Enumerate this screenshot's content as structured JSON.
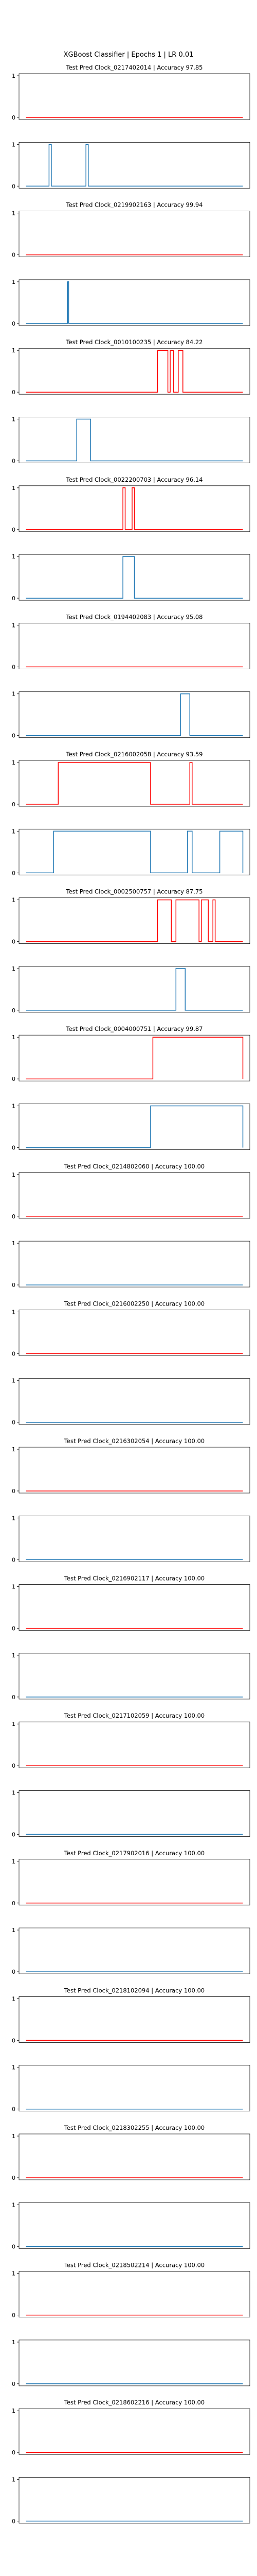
{
  "figure": {
    "suptitle": "XGBoost Classifier | Epochs 1 | LR 0.01"
  },
  "colors": {
    "pred": "#ff0000",
    "true": "#1f77b4",
    "axes": "#000000"
  },
  "chart_data": [
    {
      "type": "line",
      "title": "Test Pred Clock_0217402014 | Accuracy 97.85",
      "kind": "pred",
      "ylim": [
        0,
        1
      ],
      "yticks": [
        0,
        1
      ],
      "intervals": []
    },
    {
      "type": "line",
      "title": "",
      "kind": "true",
      "ylim": [
        0,
        1
      ],
      "yticks": [
        0,
        1
      ],
      "intervals": [
        [
          0.13,
          0.14
        ],
        [
          0.29,
          0.3
        ]
      ]
    },
    {
      "type": "line",
      "title": "Test Pred Clock_0219902163 | Accuracy 99.94",
      "kind": "pred",
      "ylim": [
        0,
        1
      ],
      "yticks": [
        0,
        1
      ],
      "intervals": []
    },
    {
      "type": "line",
      "title": "",
      "kind": "true",
      "ylim": [
        0,
        1
      ],
      "yticks": [
        0,
        1
      ],
      "intervals": [
        [
          0.21,
          0.215
        ]
      ]
    },
    {
      "type": "line",
      "title": "Test Pred Clock_0010100235 | Accuracy 84.22",
      "kind": "pred",
      "ylim": [
        0,
        1
      ],
      "yticks": [
        0,
        1
      ],
      "intervals": [
        [
          0.6,
          0.645
        ],
        [
          0.655,
          0.67
        ],
        [
          0.69,
          0.71
        ]
      ]
    },
    {
      "type": "line",
      "title": "",
      "kind": "true",
      "ylim": [
        0,
        1
      ],
      "yticks": [
        0,
        1
      ],
      "intervals": [
        [
          0.25,
          0.31
        ]
      ]
    },
    {
      "type": "line",
      "title": "Test Pred Clock_0022200703 | Accuracy 96.14",
      "kind": "pred",
      "ylim": [
        0,
        1
      ],
      "yticks": [
        0,
        1
      ],
      "intervals": [
        [
          0.45,
          0.46
        ],
        [
          0.49,
          0.5
        ]
      ]
    },
    {
      "type": "line",
      "title": "",
      "kind": "true",
      "ylim": [
        0,
        1
      ],
      "yticks": [
        0,
        1
      ],
      "intervals": [
        [
          0.45,
          0.5
        ]
      ]
    },
    {
      "type": "line",
      "title": "Test Pred Clock_0194402083 | Accuracy 95.08",
      "kind": "pred",
      "ylim": [
        0,
        1
      ],
      "yticks": [
        0,
        1
      ],
      "intervals": []
    },
    {
      "type": "line",
      "title": "",
      "kind": "true",
      "ylim": [
        0,
        1
      ],
      "yticks": [
        0,
        1
      ],
      "intervals": [
        [
          0.7,
          0.74
        ]
      ]
    },
    {
      "type": "line",
      "title": "Test Pred Clock_0216002058 | Accuracy 93.59",
      "kind": "pred",
      "ylim": [
        0,
        1
      ],
      "yticks": [
        0,
        1
      ],
      "intervals": [
        [
          0.17,
          0.57
        ],
        [
          0.74,
          0.75
        ]
      ]
    },
    {
      "type": "line",
      "title": "",
      "kind": "true",
      "ylim": [
        0,
        1
      ],
      "yticks": [
        0,
        1
      ],
      "intervals": [
        [
          0.15,
          0.57
        ],
        [
          0.73,
          0.75
        ],
        [
          0.87,
          0.99
        ]
      ]
    },
    {
      "type": "line",
      "title": "Test Pred Clock_0002500757 | Accuracy 87.75",
      "kind": "pred",
      "ylim": [
        0,
        1
      ],
      "yticks": [
        0,
        1
      ],
      "intervals": [
        [
          0.6,
          0.66
        ],
        [
          0.68,
          0.78
        ],
        [
          0.79,
          0.82
        ],
        [
          0.84,
          0.85
        ]
      ]
    },
    {
      "type": "line",
      "title": "",
      "kind": "true",
      "ylim": [
        0,
        1
      ],
      "yticks": [
        0,
        1
      ],
      "intervals": [
        [
          0.68,
          0.72
        ]
      ]
    },
    {
      "type": "line",
      "title": "Test Pred Clock_0004000751 | Accuracy 99.87",
      "kind": "pred",
      "ylim": [
        0,
        1
      ],
      "yticks": [
        0,
        1
      ],
      "intervals": [
        [
          0.58,
          1.0
        ]
      ]
    },
    {
      "type": "line",
      "title": "",
      "kind": "true",
      "ylim": [
        0,
        1
      ],
      "yticks": [
        0,
        1
      ],
      "intervals": [
        [
          0.57,
          1.0
        ]
      ]
    },
    {
      "type": "line",
      "title": "Test Pred Clock_0214802060 | Accuracy 100.00",
      "kind": "pred",
      "ylim": [
        0,
        1
      ],
      "yticks": [
        0,
        1
      ],
      "intervals": []
    },
    {
      "type": "line",
      "title": "",
      "kind": "true",
      "ylim": [
        0,
        1
      ],
      "yticks": [
        0,
        1
      ],
      "intervals": []
    },
    {
      "type": "line",
      "title": "Test Pred Clock_0216002250 | Accuracy 100.00",
      "kind": "pred",
      "ylim": [
        0,
        1
      ],
      "yticks": [
        0,
        1
      ],
      "intervals": []
    },
    {
      "type": "line",
      "title": "",
      "kind": "true",
      "ylim": [
        0,
        1
      ],
      "yticks": [
        0,
        1
      ],
      "intervals": []
    },
    {
      "type": "line",
      "title": "Test Pred Clock_0216302054 | Accuracy 100.00",
      "kind": "pred",
      "ylim": [
        0,
        1
      ],
      "yticks": [
        0,
        1
      ],
      "intervals": []
    },
    {
      "type": "line",
      "title": "",
      "kind": "true",
      "ylim": [
        0,
        1
      ],
      "yticks": [
        0,
        1
      ],
      "intervals": []
    },
    {
      "type": "line",
      "title": "Test Pred Clock_0216902117 | Accuracy 100.00",
      "kind": "pred",
      "ylim": [
        0,
        1
      ],
      "yticks": [
        0,
        1
      ],
      "intervals": []
    },
    {
      "type": "line",
      "title": "",
      "kind": "true",
      "ylim": [
        0,
        1
      ],
      "yticks": [
        0,
        1
      ],
      "intervals": []
    },
    {
      "type": "line",
      "title": "Test Pred Clock_0217102059 | Accuracy 100.00",
      "kind": "pred",
      "ylim": [
        0,
        1
      ],
      "yticks": [
        0,
        1
      ],
      "intervals": []
    },
    {
      "type": "line",
      "title": "",
      "kind": "true",
      "ylim": [
        0,
        1
      ],
      "yticks": [
        0,
        1
      ],
      "intervals": []
    },
    {
      "type": "line",
      "title": "Test Pred Clock_0217902016 | Accuracy 100.00",
      "kind": "pred",
      "ylim": [
        0,
        1
      ],
      "yticks": [
        0,
        1
      ],
      "intervals": []
    },
    {
      "type": "line",
      "title": "",
      "kind": "true",
      "ylim": [
        0,
        1
      ],
      "yticks": [
        0,
        1
      ],
      "intervals": []
    },
    {
      "type": "line",
      "title": "Test Pred Clock_0218102094 | Accuracy 100.00",
      "kind": "pred",
      "ylim": [
        0,
        1
      ],
      "yticks": [
        0,
        1
      ],
      "intervals": []
    },
    {
      "type": "line",
      "title": "",
      "kind": "true",
      "ylim": [
        0,
        1
      ],
      "yticks": [
        0,
        1
      ],
      "intervals": []
    },
    {
      "type": "line",
      "title": "Test Pred Clock_0218302255 | Accuracy 100.00",
      "kind": "pred",
      "ylim": [
        0,
        1
      ],
      "yticks": [
        0,
        1
      ],
      "intervals": []
    },
    {
      "type": "line",
      "title": "",
      "kind": "true",
      "ylim": [
        0,
        1
      ],
      "yticks": [
        0,
        1
      ],
      "intervals": []
    },
    {
      "type": "line",
      "title": "Test Pred Clock_0218502214 | Accuracy 100.00",
      "kind": "pred",
      "ylim": [
        0,
        1
      ],
      "yticks": [
        0,
        1
      ],
      "intervals": []
    },
    {
      "type": "line",
      "title": "",
      "kind": "true",
      "ylim": [
        0,
        1
      ],
      "yticks": [
        0,
        1
      ],
      "intervals": []
    },
    {
      "type": "line",
      "title": "Test Pred Clock_0218602216 | Accuracy 100.00",
      "kind": "pred",
      "ylim": [
        0,
        1
      ],
      "yticks": [
        0,
        1
      ],
      "intervals": []
    },
    {
      "type": "line",
      "title": "",
      "kind": "true",
      "ylim": [
        0,
        1
      ],
      "yticks": [
        0,
        1
      ],
      "intervals": []
    }
  ]
}
